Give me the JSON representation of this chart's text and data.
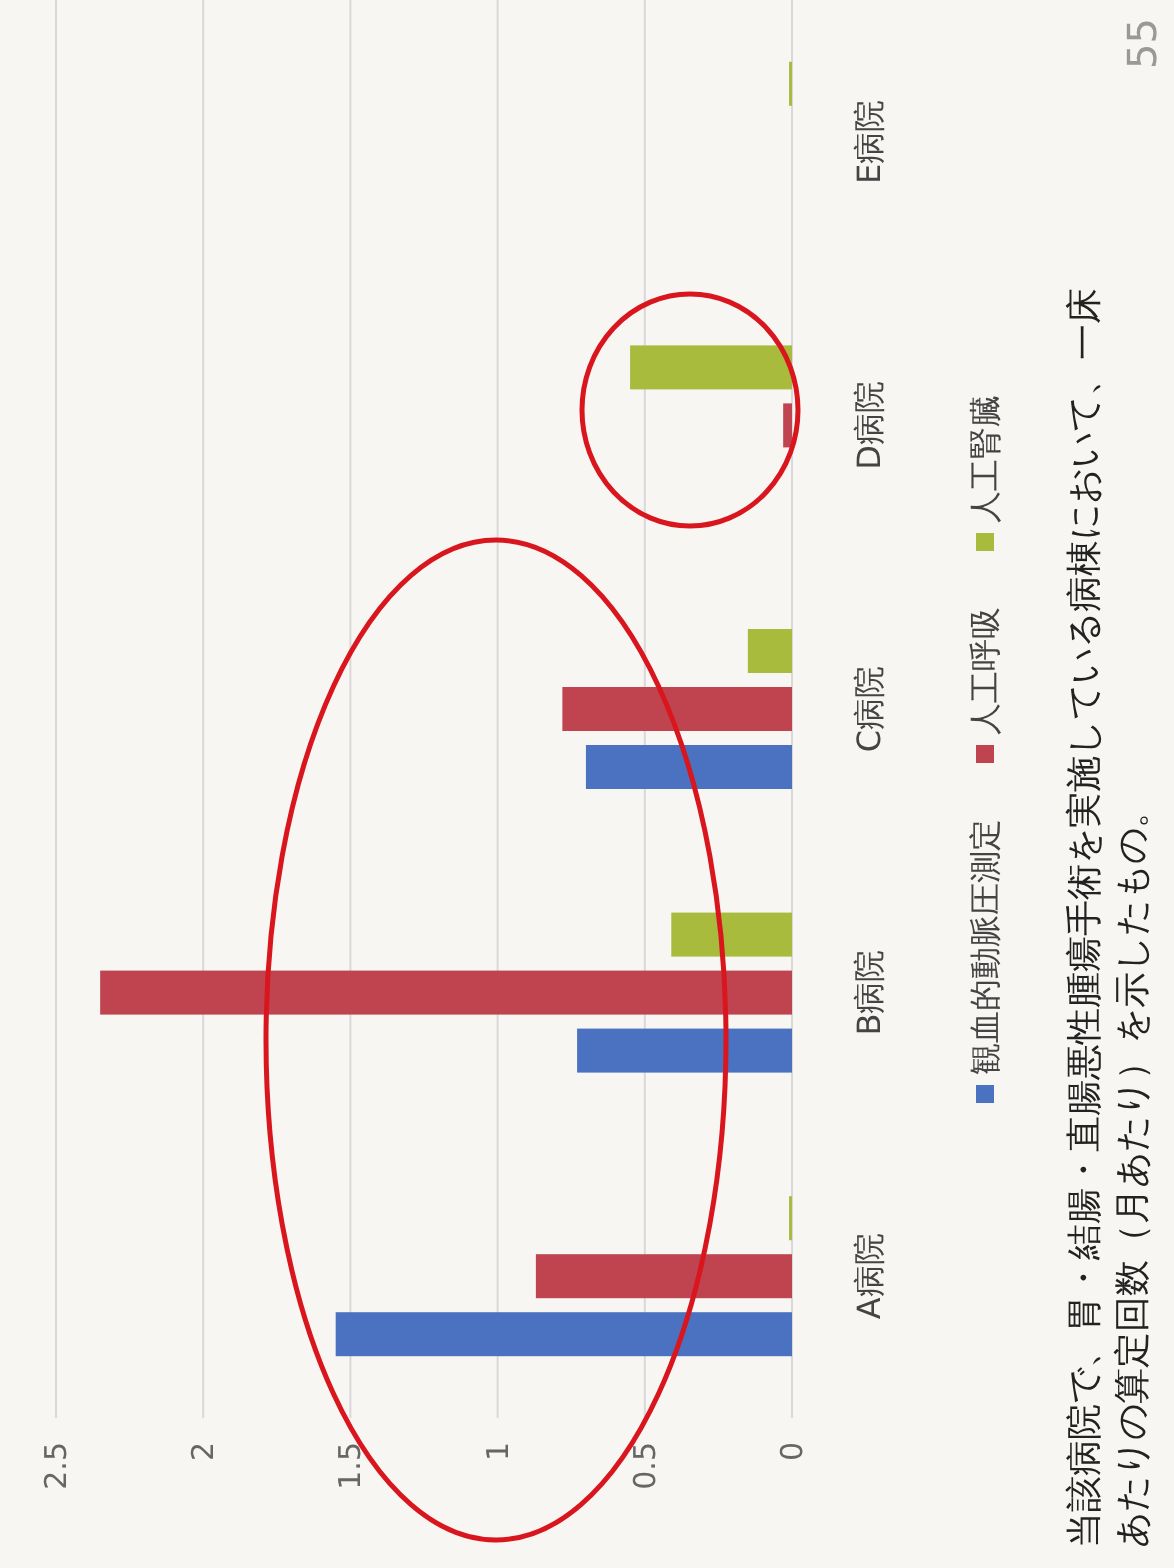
{
  "chart_data": {
    "type": "bar",
    "orientation": "horizontal",
    "categories": [
      "E病院",
      "D病院",
      "C病院",
      "B病院",
      "A病院"
    ],
    "series": [
      {
        "name": "観血的動脈圧測定",
        "color": "#4a72c0",
        "values": [
          0,
          0,
          0.7,
          0.73,
          1.55
        ]
      },
      {
        "name": "人工呼吸",
        "color": "#c0444f",
        "values": [
          0,
          0.03,
          0.78,
          2.35,
          0.87
        ]
      },
      {
        "name": "人工腎臓",
        "color": "#a8bb3c",
        "values": [
          0.01,
          0.55,
          0.15,
          0.41,
          0.01
        ]
      }
    ],
    "xlim": [
      2.5,
      0
    ],
    "xticks": [
      0,
      0.5,
      1,
      1.5,
      2,
      2.5
    ],
    "grid": "x",
    "legend": "right",
    "annotations": [
      "当該病院で、胃・結腸・直腸悪性腫瘍手術を実施している病棟において、一床あたりの算定回数（月あたり）を示したもの。",
      "55"
    ]
  }
}
